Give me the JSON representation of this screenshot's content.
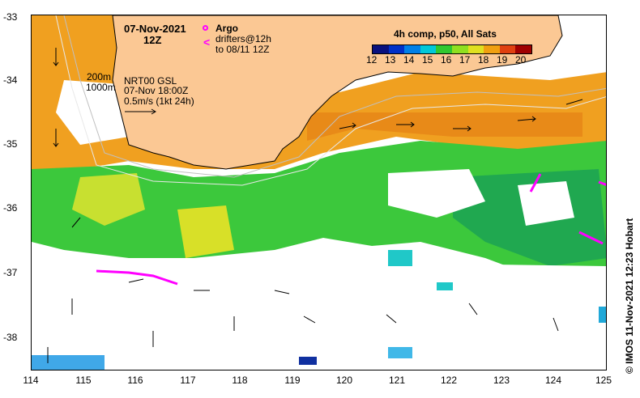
{
  "header": {
    "date": "07-Nov-2021",
    "time": "12Z",
    "argo_label": "Argo",
    "drifters_label": "drifters@12h",
    "drifters_to": "to 08/11 12Z"
  },
  "contours": {
    "c200": "200m",
    "c1000": "1000m"
  },
  "currents_info": {
    "source": "NRT00 GSL",
    "datetime": "07-Nov 18:00Z",
    "scale": "0.5m/s (1kt 24h)"
  },
  "colorbar": {
    "title": "4h comp, p50, All Sats",
    "ticks": [
      "12",
      "13",
      "14",
      "15",
      "16",
      "17",
      "18",
      "19",
      "20"
    ],
    "colors": [
      "#08107e",
      "#0030c8",
      "#0080e8",
      "#00c8d8",
      "#30c830",
      "#90e020",
      "#e0e020",
      "#f0a010",
      "#e04010",
      "#a00000"
    ]
  },
  "axes": {
    "lat_labels": [
      "-33",
      "-34",
      "-35",
      "-36",
      "-37",
      "-38"
    ],
    "lon_labels": [
      "114",
      "115",
      "116",
      "117",
      "118",
      "119",
      "120",
      "121",
      "122",
      "123",
      "124",
      "125"
    ]
  },
  "colors": {
    "land": "#fbc894",
    "argo": "#ff00ff",
    "drifter": "#ff00ff"
  },
  "credit": "© IMOS 11-Nov-2021 12:23 Hobart"
}
